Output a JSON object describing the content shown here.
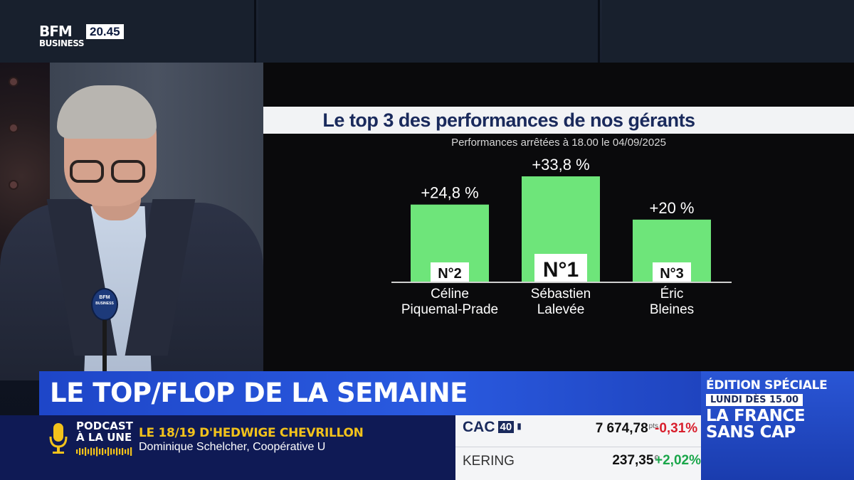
{
  "channel": {
    "logo_line1": "BFM",
    "logo_line2": "BUSINESS",
    "clock": "20.45",
    "mic_logo_line1": "BFM",
    "mic_logo_line2": "BUSINESS"
  },
  "chart_data": {
    "type": "bar",
    "title": "Le top 3 des performances de nos gérants",
    "subtitle": "Performances arrêtées à 18.00 le 04/09/2025",
    "categories": [
      "Céline Piquemal-Prade",
      "Sébastien Lalevée",
      "Éric Bleines"
    ],
    "category_lines": [
      [
        "Céline",
        "Piquemal-Prade"
      ],
      [
        "Sébastien",
        "Lalevée"
      ],
      [
        "Éric",
        "Bleines"
      ]
    ],
    "values": [
      24.8,
      33.8,
      20
    ],
    "value_labels": [
      "+24,8 %",
      "+33,8 %",
      "+20 %"
    ],
    "ranks": [
      "N°2",
      "N°1",
      "N°3"
    ],
    "ylim": [
      0,
      33.8
    ],
    "bar_color": "#6ee57a",
    "grid": false
  },
  "banner": {
    "title": "LE TOP/FLOP DE LA SEMAINE"
  },
  "podcast": {
    "label_line1": "PODCAST",
    "label_line2": "À LA UNE",
    "show": "LE 18/19 D'HEDWIGE CHEVRILLON",
    "guest": "Dominique Schelcher, Coopérative U"
  },
  "ticker": {
    "row1": {
      "name": "CAC",
      "badge": "40",
      "price": "7 674,78",
      "unit": "pts",
      "change": "-0,31%",
      "change_color": "#d81e2c"
    },
    "row2": {
      "name": "KERING",
      "price": "237,35",
      "unit": "€",
      "change": "+2,02%",
      "change_color": "#1aa64a"
    }
  },
  "promo": {
    "edition": "ÉDITION SPÉCIALE",
    "time": "LUNDI DÈS 15.00",
    "show": "LA FRANCE SANS CAP"
  }
}
